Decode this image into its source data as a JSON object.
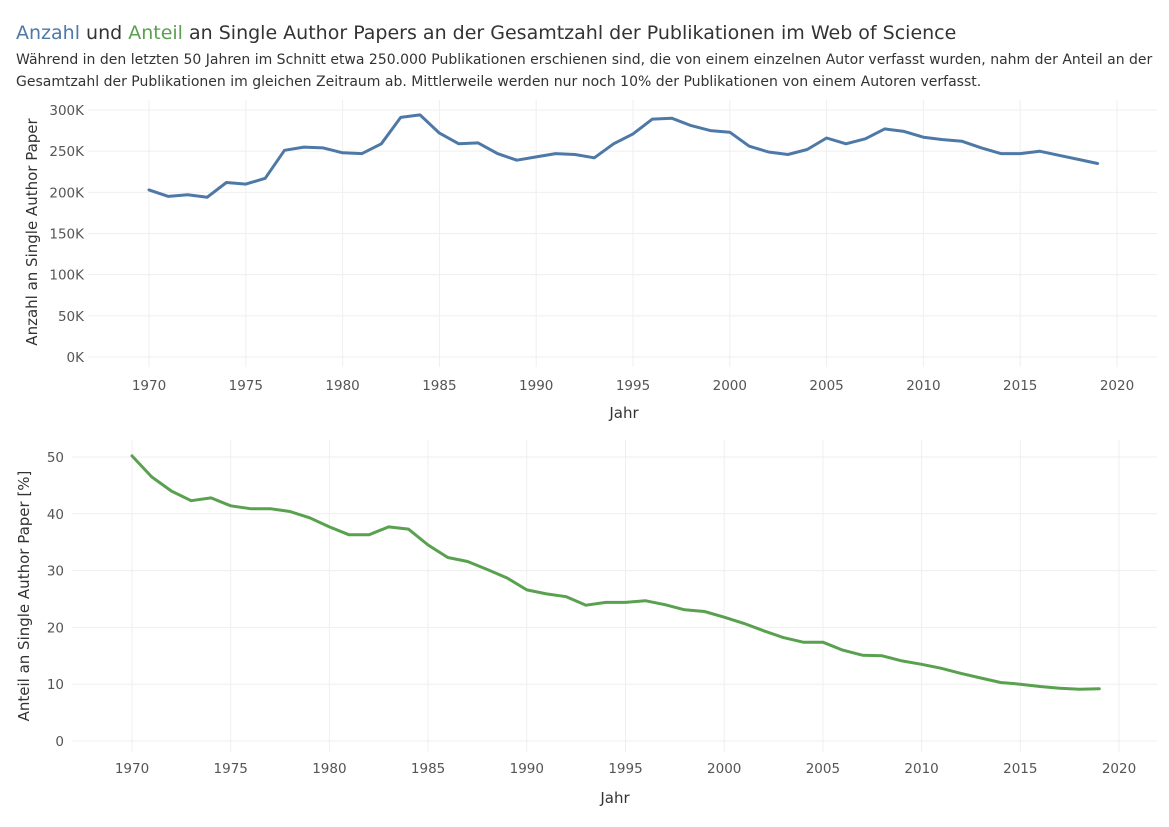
{
  "header": {
    "title_part1": "Anzahl",
    "title_part2": " und ",
    "title_part3": "Anteil",
    "title_part4": " an Single Author Papers an der Gesamtzahl der Publikationen im Web of Science",
    "subtitle": "Während in den letzten 50 Jahren im Schnitt etwa 250.000 Publikationen erschienen sind, die von einem einzelnen Autor verfasst wurden, nahm der Anteil an der Gesamtzahl der Publikationen im gleichen Zeitraum ab. Mittlerweile werden nur noch 10% der Publikationen von einem Autoren verfasst."
  },
  "colors": {
    "anzahl": "#4e79a7",
    "anteil": "#59a14f"
  },
  "chart_data": [
    {
      "type": "line",
      "xlabel": "Jahr",
      "ylabel": "Anzahl an Single Author Paper",
      "x_ticks": [
        1970,
        1975,
        1980,
        1985,
        1990,
        1995,
        2000,
        2005,
        2010,
        2015,
        2020
      ],
      "y_ticks": [
        0,
        50000,
        100000,
        150000,
        200000,
        250000,
        300000
      ],
      "y_tick_labels": [
        "0K",
        "50K",
        "100K",
        "150K",
        "200K",
        "250K",
        "300K"
      ],
      "xlim": [
        1966,
        2022
      ],
      "ylim": [
        0,
        300000
      ],
      "grid": true,
      "color": "#4e79a7",
      "x": [
        1970,
        1971,
        1972,
        1973,
        1974,
        1975,
        1976,
        1977,
        1978,
        1979,
        1980,
        1981,
        1982,
        1983,
        1984,
        1985,
        1986,
        1987,
        1988,
        1989,
        1990,
        1991,
        1992,
        1993,
        1994,
        1995,
        1996,
        1997,
        1998,
        1999,
        2000,
        2001,
        2002,
        2003,
        2004,
        2005,
        2006,
        2007,
        2008,
        2009,
        2010,
        2011,
        2012,
        2013,
        2014,
        2015,
        2016,
        2017,
        2018,
        2019
      ],
      "values": [
        203000,
        195000,
        197000,
        194000,
        212000,
        210000,
        217000,
        251000,
        255000,
        254000,
        248000,
        247000,
        259000,
        291000,
        294000,
        272000,
        259000,
        260000,
        247000,
        239000,
        243000,
        247000,
        246000,
        242000,
        259000,
        271000,
        289000,
        290000,
        281000,
        275000,
        273000,
        256000,
        249000,
        246000,
        252000,
        266000,
        259000,
        265000,
        277000,
        274000,
        267000,
        264000,
        262000,
        254000,
        247000,
        247000,
        250000,
        245000,
        240000,
        235000
      ]
    },
    {
      "type": "line",
      "xlabel": "Jahr",
      "ylabel": "Anteil an Single Author Paper [%]",
      "x_ticks": [
        1970,
        1975,
        1980,
        1985,
        1990,
        1995,
        2000,
        2005,
        2010,
        2015,
        2020
      ],
      "y_ticks": [
        0,
        10,
        20,
        30,
        40,
        50
      ],
      "xlim": [
        1966,
        2022
      ],
      "ylim": [
        0,
        52
      ],
      "grid": true,
      "color": "#59a14f",
      "x": [
        1970,
        1971,
        1972,
        1973,
        1974,
        1975,
        1976,
        1977,
        1978,
        1979,
        1980,
        1981,
        1982,
        1983,
        1984,
        1985,
        1986,
        1987,
        1988,
        1989,
        1990,
        1991,
        1992,
        1993,
        1994,
        1995,
        1996,
        1997,
        1998,
        1999,
        2000,
        2001,
        2002,
        2003,
        2004,
        2005,
        2006,
        2007,
        2008,
        2009,
        2010,
        2011,
        2012,
        2013,
        2014,
        2015,
        2016,
        2017,
        2018,
        2019
      ],
      "values": [
        50.2,
        46.5,
        44.0,
        42.3,
        42.8,
        41.4,
        40.9,
        40.9,
        40.4,
        39.3,
        37.7,
        36.3,
        36.3,
        37.7,
        37.3,
        34.5,
        32.3,
        31.6,
        30.2,
        28.7,
        26.6,
        25.9,
        25.4,
        23.9,
        24.4,
        24.4,
        24.7,
        24.0,
        23.1,
        22.8,
        21.8,
        20.7,
        19.4,
        18.2,
        17.4,
        17.4,
        16.0,
        15.1,
        15.0,
        14.1,
        13.5,
        12.8,
        11.9,
        11.1,
        10.3,
        10.0,
        9.6,
        9.3,
        9.1,
        9.2
      ]
    }
  ]
}
